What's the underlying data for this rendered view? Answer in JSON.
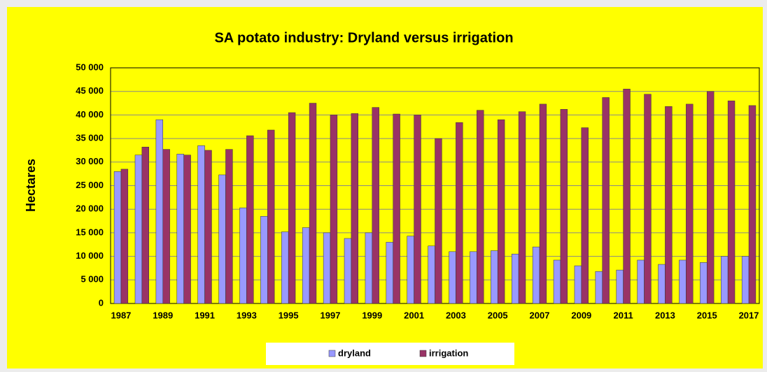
{
  "chart_data": {
    "type": "bar",
    "title": "SA potato industry: Dryland versus irrigation",
    "y_label": "Hectares",
    "categories": [
      "1987",
      null,
      "1989",
      null,
      "1991",
      null,
      "1993",
      null,
      "1995",
      null,
      "1997",
      null,
      "1999",
      null,
      "2001",
      null,
      "2003",
      null,
      "2005",
      null,
      "2007",
      null,
      "2009",
      null,
      "2011",
      null,
      "2013",
      null,
      "2015",
      null,
      "2017"
    ],
    "series": [
      {
        "name": "dryland",
        "color": "#9999ff",
        "values": [
          28000,
          31500,
          39000,
          31700,
          33500,
          27300,
          20300,
          18500,
          15200,
          16100,
          15000,
          13800,
          15000,
          13000,
          14300,
          12200,
          11000,
          11000,
          11200,
          10500,
          12000,
          9200,
          8000,
          6800,
          7100,
          9200,
          8300,
          9200,
          8700,
          10000,
          10000
        ]
      },
      {
        "name": "irrigation",
        "color": "#993366",
        "values": [
          28500,
          33200,
          32700,
          31500,
          32500,
          32700,
          35600,
          36800,
          40500,
          42500,
          40000,
          40300,
          41600,
          40200,
          40000,
          35000,
          38400,
          41000,
          39000,
          40700,
          42300,
          41200,
          37300,
          43700,
          45500,
          44400,
          41800,
          42300,
          45000,
          43000,
          42000
        ]
      }
    ],
    "ylim": [
      0,
      50000
    ],
    "yticks": [
      0,
      {
        "value": 5000,
        "label": "5 000"
      },
      {
        "value": 10000,
        "label": "10 000"
      },
      {
        "value": 15000,
        "label": "15 000"
      },
      {
        "value": 20000,
        "label": "20 000"
      },
      {
        "value": 25000,
        "label": "25 000"
      },
      {
        "value": 30000,
        "label": "30 000"
      },
      {
        "value": 35000,
        "label": "35 000"
      },
      {
        "value": 40000,
        "label": "40 000"
      },
      {
        "value": 45000,
        "label": "45 000"
      },
      {
        "value": 50000,
        "label": "50 000"
      }
    ],
    "grid": true,
    "legend": "bottom"
  }
}
